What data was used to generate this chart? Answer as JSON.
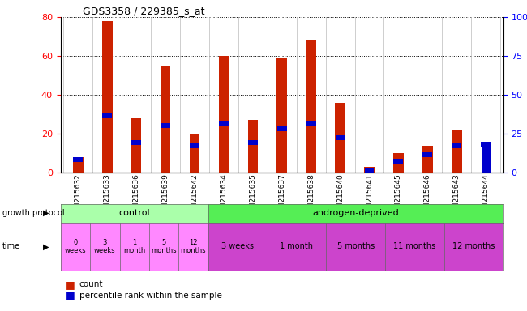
{
  "title": "GDS3358 / 229385_s_at",
  "samples": [
    "GSM215632",
    "GSM215633",
    "GSM215636",
    "GSM215639",
    "GSM215642",
    "GSM215634",
    "GSM215635",
    "GSM215637",
    "GSM215638",
    "GSM215640",
    "GSM215641",
    "GSM215645",
    "GSM215646",
    "GSM215643",
    "GSM215644"
  ],
  "red_values": [
    8,
    78,
    28,
    55,
    20,
    60,
    27,
    59,
    68,
    36,
    3,
    10,
    14,
    22,
    0
  ],
  "blue_values": [
    10,
    38,
    21,
    32,
    19,
    33,
    21,
    30,
    33,
    24,
    3,
    9,
    13,
    19,
    20
  ],
  "left_ylim": [
    0,
    80
  ],
  "right_ylim": [
    0,
    100
  ],
  "left_yticks": [
    0,
    20,
    40,
    60,
    80
  ],
  "right_yticks": [
    0,
    25,
    50,
    75,
    100
  ],
  "right_yticklabels": [
    "0",
    "25",
    "50",
    "75",
    "100%"
  ],
  "protocol_label_control": "control",
  "protocol_label_androgen": "androgen-deprived",
  "protocol_color_control": "#aaffaa",
  "protocol_color_androgen": "#55ee55",
  "time_color_control": "#ff88ff",
  "time_color_androgen": "#cc44cc",
  "time_labels_control": [
    "0\nweeks",
    "3\nweeks",
    "1\nmonth",
    "5\nmonths",
    "12\nmonths"
  ],
  "time_labels_androgen": [
    "3 weeks",
    "1 month",
    "5 months",
    "11 months",
    "12 months"
  ],
  "bar_color_red": "#cc2200",
  "bar_color_blue": "#0000cc",
  "background_color": "#ffffff",
  "legend_count_label": "count",
  "legend_percentile_label": "percentile rank within the sample",
  "n_control": 5,
  "n_androgen_groups": 5,
  "androgen_group_sizes": [
    2,
    2,
    2,
    2,
    2
  ]
}
